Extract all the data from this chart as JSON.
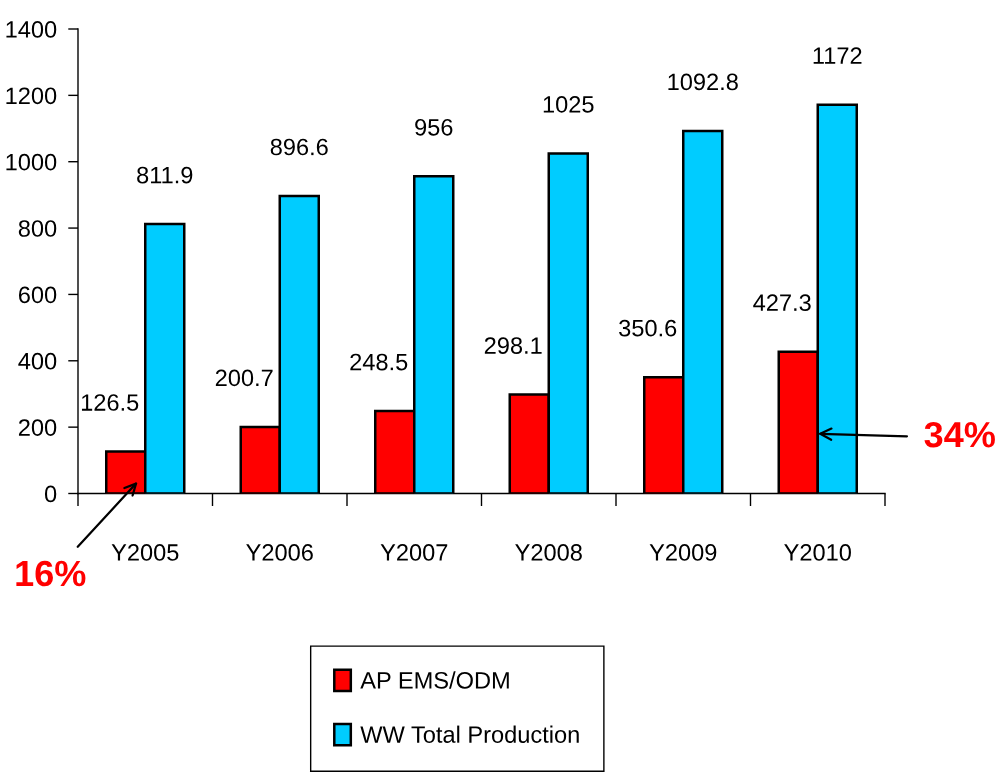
{
  "chart_data": {
    "type": "bar",
    "categories": [
      "Y2005",
      "Y2006",
      "Y2007",
      "Y2008",
      "Y2009",
      "Y2010"
    ],
    "series": [
      {
        "name": "AP EMS/ODM",
        "color": "#ff0000",
        "values": [
          126.5,
          200.7,
          248.5,
          298.1,
          350.6,
          427.3
        ]
      },
      {
        "name": "WW Total Production",
        "color": "#00ccff",
        "values": [
          811.9,
          896.6,
          956,
          1025,
          1092.8,
          1172
        ]
      }
    ],
    "ylim": [
      0,
      1400
    ],
    "yticks": [
      0,
      200,
      400,
      600,
      800,
      1000,
      1200,
      1400
    ],
    "grid": false,
    "legend": "bottom",
    "data_labels": true,
    "annotations": [
      {
        "text": "16%",
        "x": "Y2005",
        "y": 60
      },
      {
        "text": "34%",
        "x": "Y2010",
        "y": 180
      }
    ]
  }
}
